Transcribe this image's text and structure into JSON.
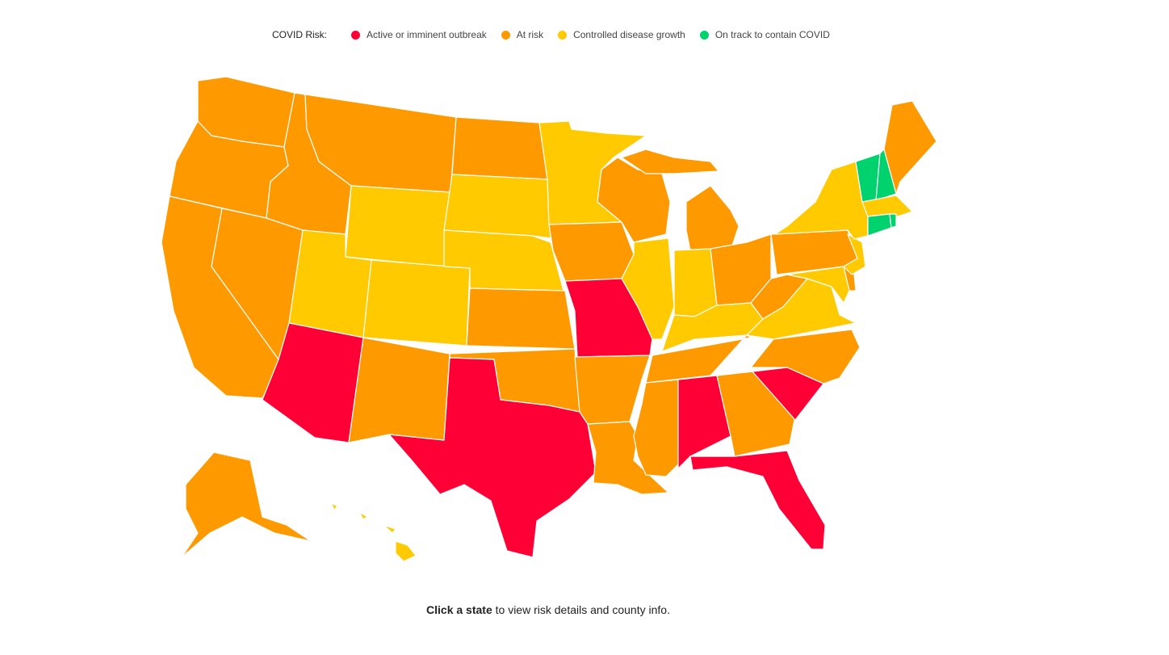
{
  "legend": {
    "title": "COVID Risk:",
    "items": [
      {
        "label": "Active or imminent outbreak",
        "color": "#ff0036"
      },
      {
        "label": "At risk",
        "color": "#ff9900"
      },
      {
        "label": "Controlled disease growth",
        "color": "#ffca00"
      },
      {
        "label": "On track to contain COVID",
        "color": "#00d26e"
      }
    ]
  },
  "states": [
    {
      "risk": 1
    },
    {
      "risk": 1
    },
    {
      "risk": 1
    },
    {
      "risk": 1
    },
    {
      "risk": 1
    },
    {
      "risk": 1
    },
    {
      "risk": 2
    },
    {
      "risk": 2
    },
    {
      "risk": 0
    },
    {
      "risk": 2
    },
    {
      "risk": 1
    },
    {
      "risk": 1
    },
    {
      "risk": 2
    },
    {
      "risk": 2
    },
    {
      "risk": 1
    },
    {
      "risk": 1
    },
    {
      "risk": 0
    },
    {
      "risk": 2
    },
    {
      "risk": 1
    },
    {
      "risk": 0
    },
    {
      "risk": 1
    },
    {
      "risk": 1
    },
    {
      "risk": 1
    },
    {
      "risk": 2
    },
    {
      "risk": 1
    },
    {
      "risk": 1
    },
    {
      "risk": 2
    },
    {
      "risk": 1
    },
    {
      "risk": 2
    },
    {
      "risk": 1
    },
    {
      "risk": 1
    },
    {
      "risk": 0
    },
    {
      "risk": 1
    },
    {
      "risk": 0
    },
    {
      "risk": 0
    },
    {
      "risk": 1
    },
    {
      "risk": 2
    },
    {
      "risk": 1
    },
    {
      "risk": 1
    },
    {
      "risk": 2
    },
    {
      "risk": 2
    },
    {
      "risk": 2
    },
    {
      "risk": 1
    },
    {
      "risk": 3
    },
    {
      "risk": 3
    },
    {
      "risk": 2
    },
    {
      "risk": 2
    },
    {
      "risk": 3
    },
    {
      "risk": 3
    },
    {
      "risk": 1
    },
    {
      "risk": 2
    }
  ],
  "footer": {
    "bold": "Click a state",
    "rest": "to view risk details and county info."
  }
}
